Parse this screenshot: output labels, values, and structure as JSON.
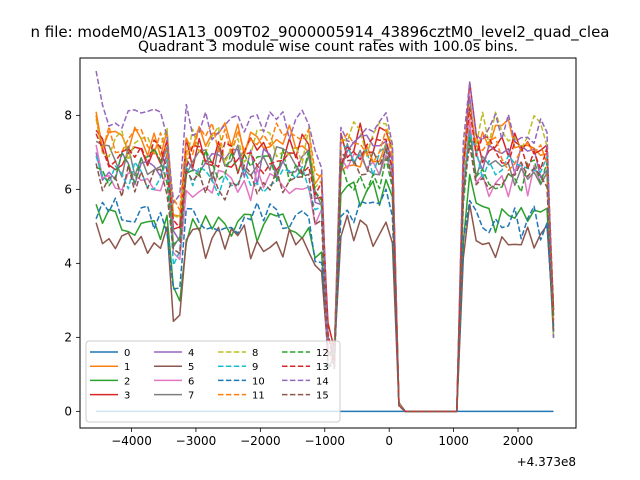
{
  "chart_data": {
    "type": "line",
    "suptitle": "n file: modeM0/AS1A13_009T02_9000005914_43896cztM0_level2_quad_clea",
    "title": "Quadrant 3 module wise count rates with 100.0s bins.",
    "xlabel": "",
    "ylabel": "",
    "x_offset_label": "+4.373e8",
    "x_offset": 437300000,
    "xlim": [
      -4800,
      2900
    ],
    "ylim": [
      -0.45,
      9.55
    ],
    "xticks": [
      -4000,
      -3000,
      -2000,
      -1000,
      0,
      1000,
      2000
    ],
    "xtick_labels": [
      "−4000",
      "−3000",
      "−2000",
      "−1000",
      "0",
      "1000",
      "2000"
    ],
    "yticks": [
      0,
      2,
      4,
      6,
      8
    ],
    "ytick_labels": [
      "0",
      "2",
      "4",
      "6",
      "8"
    ],
    "grid": false,
    "legend": {
      "placement": "lower-left",
      "columns": 4
    },
    "x_grid": {
      "segments": [
        [
          -4550,
          -950
        ],
        [
          -850,
          150
        ],
        [
          1150,
          2550
        ]
      ],
      "step": 100,
      "drop_x": [
        -950,
        -850,
        150,
        250,
        1050
      ]
    },
    "series": [
      {
        "name": "0",
        "color": "#1f77b4",
        "dash": "solid",
        "constant": 0.0
      },
      {
        "name": "1",
        "color": "#ff7f0e",
        "dash": "solid",
        "level": 7.3,
        "seg_levels": [
          7.3,
          7.0,
          7.4
        ],
        "start": 8.1,
        "peak": 8.4
      },
      {
        "name": "2",
        "color": "#2ca02c",
        "dash": "solid",
        "level": 5.0,
        "seg_levels": [
          5.0,
          6.0,
          5.2
        ],
        "start": 5.6,
        "peak": 6.4
      },
      {
        "name": "3",
        "color": "#d62728",
        "dash": "solid",
        "level": 7.0,
        "seg_levels": [
          7.0,
          7.3,
          7.2
        ],
        "start": 7.6,
        "peak": 8.9
      },
      {
        "name": "4",
        "color": "#9467bd",
        "dash": "solid",
        "level": 6.6,
        "seg_levels": [
          6.6,
          7.0,
          6.8
        ],
        "start": 7.0,
        "peak": 8.5
      },
      {
        "name": "5",
        "color": "#8c564b",
        "dash": "solid",
        "level": 4.6,
        "seg_levels": [
          4.6,
          4.8,
          4.6
        ],
        "start": 5.1,
        "peak": 5.6
      },
      {
        "name": "6",
        "color": "#e377c2",
        "dash": "solid",
        "level": 6.1,
        "seg_levels": [
          6.1,
          6.6,
          6.3
        ],
        "start": 7.2,
        "peak": 7.9
      },
      {
        "name": "7",
        "color": "#7f7f7f",
        "dash": "solid",
        "level": 6.7,
        "seg_levels": [
          6.7,
          6.8,
          6.6
        ],
        "start": 7.3,
        "peak": 7.6
      },
      {
        "name": "8",
        "color": "#bcbd22",
        "dash": "dashed",
        "level": 7.2,
        "seg_levels": [
          7.2,
          7.4,
          7.6
        ],
        "start": 7.9,
        "peak": 8.3
      },
      {
        "name": "9",
        "color": "#17becf",
        "dash": "dashed",
        "level": 6.3,
        "seg_levels": [
          6.3,
          6.8,
          6.6
        ],
        "start": 6.9,
        "peak": 7.5
      },
      {
        "name": "10",
        "color": "#1f77b4",
        "dash": "dashed",
        "level": 5.3,
        "seg_levels": [
          5.3,
          5.6,
          5.1
        ],
        "start": 5.2,
        "peak": 5.7
      },
      {
        "name": "11",
        "color": "#ff7f0e",
        "dash": "dashed",
        "level": 7.4,
        "seg_levels": [
          7.4,
          7.2,
          7.0
        ],
        "start": 8.0,
        "peak": 8.2
      },
      {
        "name": "12",
        "color": "#2ca02c",
        "dash": "dashed",
        "level": 6.6,
        "seg_levels": [
          6.6,
          6.4,
          6.3
        ],
        "start": 6.6,
        "peak": 7.4
      },
      {
        "name": "13",
        "color": "#d62728",
        "dash": "dashed",
        "level": 6.9,
        "seg_levels": [
          6.9,
          6.9,
          7.0
        ],
        "start": 7.5,
        "peak": 8.2
      },
      {
        "name": "14",
        "color": "#9467bd",
        "dash": "dashed",
        "level": 7.8,
        "seg_levels": [
          7.8,
          7.6,
          7.7
        ],
        "start": 9.2,
        "peak": 8.9
      },
      {
        "name": "15",
        "color": "#8c564b",
        "dash": "dashed",
        "level": 6.2,
        "seg_levels": [
          6.2,
          6.6,
          6.5
        ],
        "start": 6.7,
        "peak": 7.2
      }
    ]
  }
}
